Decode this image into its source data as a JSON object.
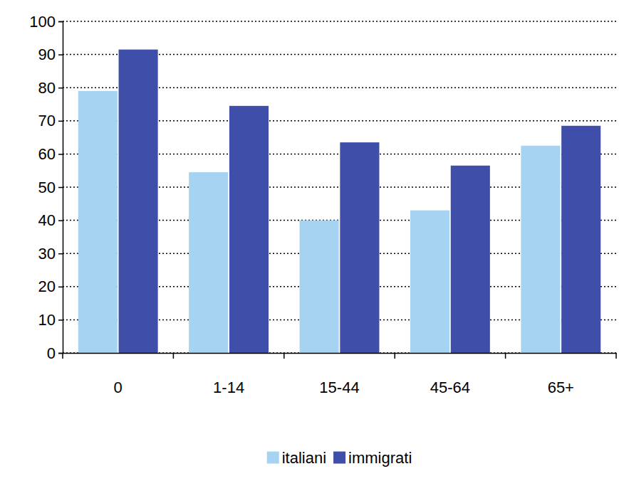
{
  "chart_data": {
    "type": "bar",
    "categories": [
      "0",
      "1-14",
      "15-44",
      "45-64",
      "65+"
    ],
    "series": [
      {
        "name": "italiani",
        "color": "#a6d3f2",
        "values": [
          79,
          54.5,
          40,
          43,
          62.5
        ]
      },
      {
        "name": "immigrati",
        "color": "#3f4ea8",
        "values": [
          91.5,
          74.5,
          63.5,
          56.5,
          68.5
        ]
      }
    ],
    "ylim": [
      0,
      100
    ],
    "yticks": [
      0,
      10,
      20,
      30,
      40,
      50,
      60,
      70,
      80,
      90,
      100
    ],
    "grid": true,
    "legend": "bottom"
  }
}
